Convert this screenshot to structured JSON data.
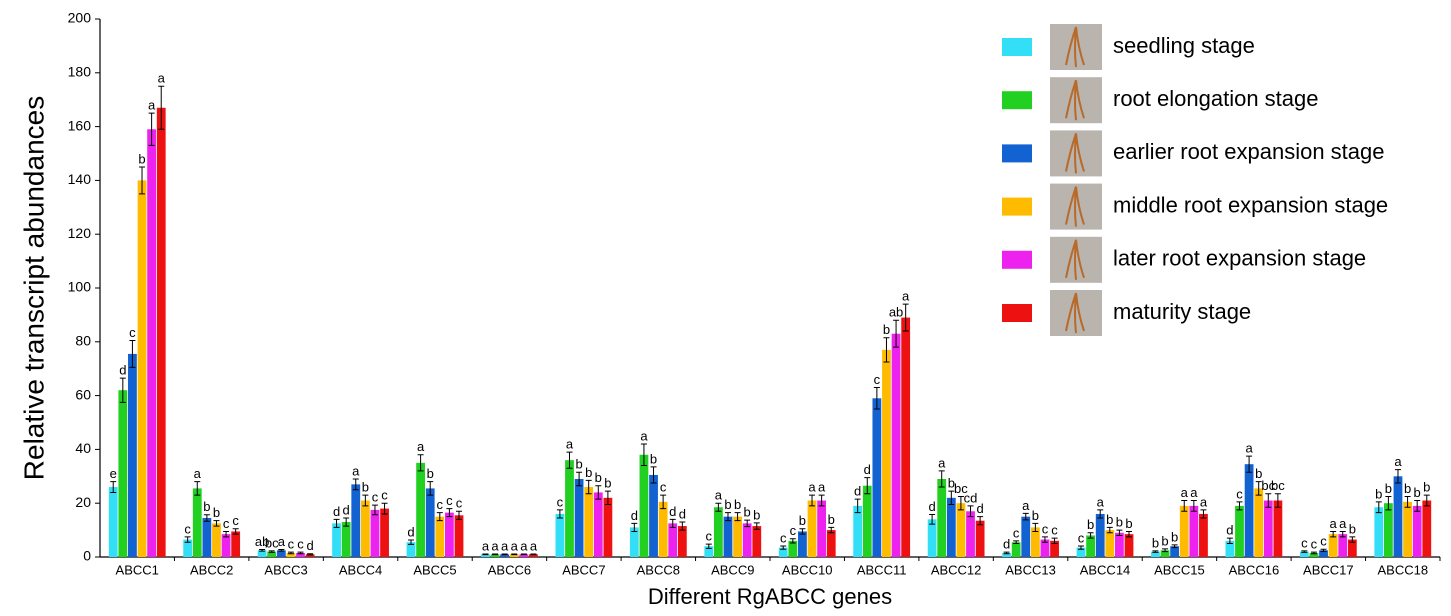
{
  "chart_data": {
    "type": "bar",
    "xlabel": "Different RgABCC genes",
    "ylabel": "Relative transcript abundances",
    "categories": [
      "ABCC1",
      "ABCC2",
      "ABCC3",
      "ABCC4",
      "ABCC5",
      "ABCC6",
      "ABCC7",
      "ABCC8",
      "ABCC9",
      "ABCC10",
      "ABCC11",
      "ABCC12",
      "ABCC13",
      "ABCC14",
      "ABCC15",
      "ABCC16",
      "ABCC17",
      "ABCC18"
    ],
    "ylim": [
      0,
      200
    ],
    "yticks": [
      0,
      20,
      40,
      60,
      80,
      100,
      120,
      140,
      160,
      180,
      200
    ],
    "legend": "top-right",
    "series": [
      {
        "name": "seedling stage",
        "color": "#33dff7",
        "values": [
          26,
          6.5,
          2.5,
          12.5,
          5.5,
          1,
          16,
          11,
          4,
          3.5,
          19,
          14,
          1.5,
          3.5,
          2,
          6,
          2,
          18.5
        ],
        "errors": [
          2,
          1,
          0.3,
          1.5,
          0.8,
          0.1,
          1.5,
          1.5,
          0.8,
          0.6,
          2.5,
          1.8,
          0.3,
          0.6,
          0.3,
          1,
          0.3,
          2
        ],
        "labels": [
          "e",
          "c",
          "ab",
          "d",
          "d",
          "a",
          "c",
          "d",
          "c",
          "c",
          "d",
          "d",
          "d",
          "c",
          "b",
          "d",
          "c",
          "b"
        ]
      },
      {
        "name": "root elongation stage",
        "color": "#22d022",
        "values": [
          62,
          25.5,
          2,
          13,
          35,
          1,
          36,
          38,
          18.5,
          6,
          26.5,
          29,
          5.5,
          8,
          2.5,
          19,
          1.5,
          20
        ],
        "errors": [
          4.5,
          2.5,
          0.3,
          1.5,
          3,
          0.1,
          3,
          4,
          1.5,
          0.8,
          3,
          3,
          0.5,
          1,
          0.5,
          1.5,
          0.3,
          2.5
        ],
        "labels": [
          "d",
          "a",
          "bc",
          "d",
          "a",
          "a",
          "a",
          "a",
          "a",
          "c",
          "d",
          "a",
          "c",
          "b",
          "b",
          "c",
          "c",
          "b"
        ]
      },
      {
        "name": "earlier root expansion stage",
        "color": "#1262d2",
        "values": [
          75.5,
          14.5,
          2.5,
          27,
          25.5,
          1,
          29,
          30.5,
          15,
          9.5,
          59,
          22,
          15,
          16,
          4,
          34.5,
          2.5,
          30
        ],
        "errors": [
          5,
          1.2,
          0.3,
          2,
          2.5,
          0.1,
          2.5,
          3,
          1.5,
          1,
          4,
          2.5,
          1.2,
          1.5,
          0.5,
          3,
          0.4,
          2.5
        ],
        "labels": [
          "c",
          "b",
          "a",
          "a",
          "b",
          "a",
          "b",
          "b",
          "b",
          "b",
          "c",
          "b",
          "a",
          "a",
          "b",
          "a",
          "c",
          "a"
        ]
      },
      {
        "name": "middle root expansion stage",
        "color": "#ffbb00",
        "values": [
          140,
          12.5,
          1.5,
          21,
          15,
          1,
          26,
          20.5,
          15,
          21,
          77,
          20,
          11,
          10,
          19,
          25.5,
          8.5,
          20.5
        ],
        "errors": [
          5,
          1,
          0.3,
          2,
          1.5,
          0.1,
          2.5,
          2.5,
          1.5,
          2,
          4.5,
          2.5,
          1.5,
          1,
          2,
          2.5,
          1,
          2
        ],
        "labels": [
          "b",
          "b",
          "c",
          "b",
          "c",
          "a",
          "b",
          "c",
          "b",
          "a",
          "b",
          "bc",
          "b",
          "b",
          "a",
          "b",
          "a",
          "b"
        ]
      },
      {
        "name": "later root expansion stage",
        "color": "#ee22ee",
        "values": [
          159,
          8.5,
          1.5,
          17.5,
          16.5,
          1,
          24,
          12.5,
          12.5,
          21,
          83,
          17,
          6.5,
          9,
          19,
          21,
          8.5,
          19
        ],
        "errors": [
          6,
          1,
          0.3,
          1.8,
          1.5,
          0.1,
          2.5,
          1.5,
          1.2,
          2,
          5,
          2,
          1,
          1,
          2,
          2.5,
          1,
          2
        ],
        "labels": [
          "a",
          "c",
          "c",
          "c",
          "c",
          "a",
          "b",
          "d",
          "b",
          "a",
          "ab",
          "cd",
          "c",
          "b",
          "a",
          "bc",
          "a",
          "b"
        ]
      },
      {
        "name": "maturity stage",
        "color": "#ee1111",
        "values": [
          167,
          9.5,
          1,
          18,
          15.5,
          1,
          22,
          11.5,
          11.5,
          10,
          89,
          13.5,
          6,
          8.5,
          16,
          21,
          6.5,
          21
        ],
        "errors": [
          8,
          1,
          0.2,
          2,
          1.5,
          0.1,
          2.5,
          1.5,
          1.2,
          1,
          5,
          1.5,
          1,
          1,
          1.5,
          2.5,
          1,
          2
        ],
        "labels": [
          "a",
          "c",
          "d",
          "c",
          "c",
          "a",
          "b",
          "d",
          "b",
          "b",
          "a",
          "d",
          "c",
          "b",
          "a",
          "bc",
          "b",
          "b"
        ]
      }
    ]
  }
}
